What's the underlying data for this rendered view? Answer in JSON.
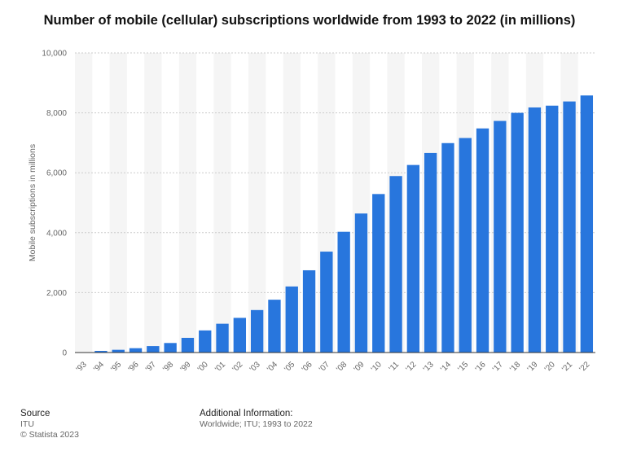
{
  "chart_data": {
    "type": "bar",
    "title": "Number of mobile (cellular) subscriptions worldwide from 1993 to 2022 (in millions)",
    "xlabel": "",
    "ylabel": "Mobile subscriptions in millions",
    "ylim": [
      0,
      10000
    ],
    "yticks": [
      "0",
      "2,000",
      "4,000",
      "6,000",
      "8,000",
      "10,000"
    ],
    "categories": [
      "'93",
      "'94",
      "'95",
      "'96",
      "'97",
      "'98",
      "'99",
      "'00",
      "'01",
      "'02",
      "'03",
      "'04",
      "'05",
      "'06",
      "'07",
      "'08",
      "'09",
      "'10",
      "'11",
      "'12",
      "'13",
      "'14",
      "'15",
      "'16",
      "'17",
      "'18",
      "'19",
      "'20",
      "'21",
      "'22"
    ],
    "values": [
      0,
      55,
      91,
      145,
      215,
      318,
      490,
      738,
      961,
      1157,
      1418,
      1763,
      2205,
      2745,
      3368,
      4030,
      4640,
      5290,
      5890,
      6260,
      6660,
      6990,
      7160,
      7480,
      7730,
      8000,
      8180,
      8240,
      8380,
      8580
    ],
    "bar_color": "#2876dd",
    "grid": true
  },
  "footer": {
    "source_heading": "Source",
    "source_name": "ITU",
    "copyright": "© Statista 2023",
    "info_heading": "Additional Information:",
    "info_text": "Worldwide; ITU; 1993 to 2022"
  }
}
